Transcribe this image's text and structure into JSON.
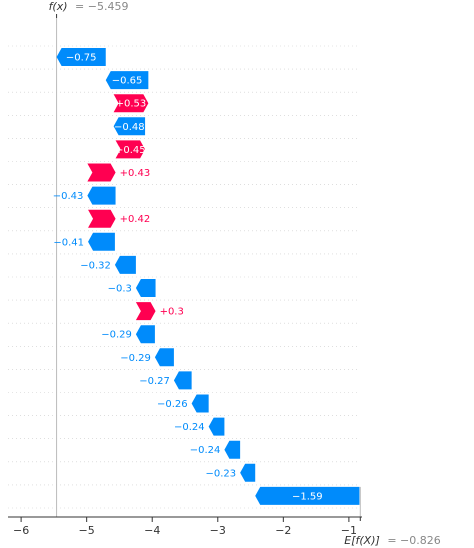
{
  "chart_data": {
    "type": "waterfall",
    "fx_label": "f(x)",
    "fx_value": "= −5.459",
    "fx": -5.459,
    "efx_label": "E[f(X)]",
    "efx_value": "= −0.826",
    "efx": -0.826,
    "xlim": [
      -6.2,
      -0.8
    ],
    "xticks": [
      {
        "value": -6,
        "label": "−6"
      },
      {
        "value": -5,
        "label": "−5"
      },
      {
        "value": -4,
        "label": "−4"
      },
      {
        "value": -3,
        "label": "−3"
      },
      {
        "value": -2,
        "label": "−2"
      },
      {
        "value": -1,
        "label": "−1"
      }
    ],
    "colors": {
      "positive": "#ff0051",
      "negative": "#008bfb",
      "axis": "#333333",
      "gridline": "#cccccc"
    },
    "bars": [
      {
        "value": -0.75,
        "label": "−0.75",
        "start": -4.709,
        "end": -5.459,
        "label_inside": true
      },
      {
        "value": -0.65,
        "label": "−0.65",
        "start": -4.059,
        "end": -4.709,
        "label_inside": true
      },
      {
        "value": 0.53,
        "label": "+0.53",
        "start": -4.589,
        "end": -4.059,
        "label_inside": true
      },
      {
        "value": -0.48,
        "label": "−0.48",
        "start": -4.109,
        "end": -4.589,
        "label_inside": true
      },
      {
        "value": 0.45,
        "label": "+0.45",
        "start": -4.559,
        "end": -4.109,
        "label_inside": true
      },
      {
        "value": 0.43,
        "label": "+0.43",
        "start": -4.989,
        "end": -4.559,
        "label_inside": false
      },
      {
        "value": -0.43,
        "label": "−0.43",
        "start": -4.559,
        "end": -4.989,
        "label_inside": false
      },
      {
        "value": 0.42,
        "label": "+0.42",
        "start": -4.979,
        "end": -4.559,
        "label_inside": false
      },
      {
        "value": -0.41,
        "label": "−0.41",
        "start": -4.569,
        "end": -4.979,
        "label_inside": false
      },
      {
        "value": -0.32,
        "label": "−0.32",
        "start": -4.249,
        "end": -4.569,
        "label_inside": false
      },
      {
        "value": -0.3,
        "label": "−0.3",
        "start": -3.949,
        "end": -4.249,
        "label_inside": false
      },
      {
        "value": 0.3,
        "label": "+0.3",
        "start": -4.249,
        "end": -3.949,
        "label_inside": false
      },
      {
        "value": -0.29,
        "label": "−0.29",
        "start": -3.959,
        "end": -4.249,
        "label_inside": false
      },
      {
        "value": -0.29,
        "label": "−0.29",
        "start": -3.669,
        "end": -3.959,
        "label_inside": false
      },
      {
        "value": -0.27,
        "label": "−0.27",
        "start": -3.399,
        "end": -3.669,
        "label_inside": false
      },
      {
        "value": -0.26,
        "label": "−0.26",
        "start": -3.139,
        "end": -3.399,
        "label_inside": false
      },
      {
        "value": -0.24,
        "label": "−0.24",
        "start": -2.899,
        "end": -3.139,
        "label_inside": false
      },
      {
        "value": -0.24,
        "label": "−0.24",
        "start": -2.659,
        "end": -2.899,
        "label_inside": false
      },
      {
        "value": -0.23,
        "label": "−0.23",
        "start": -2.429,
        "end": -2.659,
        "label_inside": false
      },
      {
        "value": -1.59,
        "label": "−1.59",
        "start": -0.839,
        "end": -2.429,
        "label_inside": true
      }
    ]
  }
}
